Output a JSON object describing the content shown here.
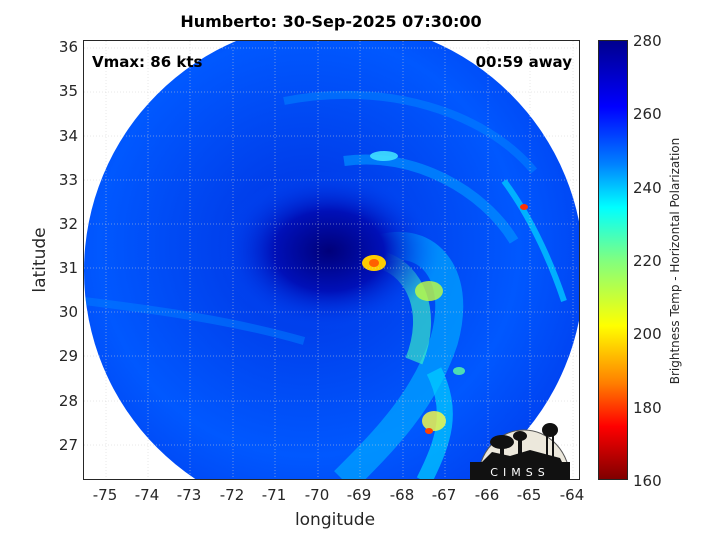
{
  "title": "Humberto: 30-Sep-2025 07:30:00",
  "annotations": {
    "vmax": "Vmax: 86 kts",
    "time_away": "00:59 away"
  },
  "axes": {
    "xlabel": "longitude",
    "ylabel": "latitude",
    "xlim": [
      -75.5,
      -63.8
    ],
    "ylim": [
      26.2,
      36.2
    ],
    "x_ticks": [
      "-75",
      "-74",
      "-73",
      "-72",
      "-71",
      "-70",
      "-69",
      "-68",
      "-67",
      "-66",
      "-65",
      "-64"
    ],
    "y_ticks": [
      "27",
      "28",
      "29",
      "30",
      "31",
      "32",
      "33",
      "34",
      "35",
      "36"
    ]
  },
  "colorbar": {
    "label": "Brightness Temp - Horizontal Polarization",
    "range": [
      160,
      280
    ],
    "ticks": [
      "280",
      "260",
      "240",
      "220",
      "200",
      "180",
      "160"
    ],
    "colormap": "jet"
  },
  "storm": {
    "center_lon": -69.6,
    "center_lat": 31.2
  },
  "logo_text": "CIMSS",
  "colors": {
    "deep_blue": "#00008f",
    "blue": "#0000ff",
    "cyan": "#00c8ff",
    "yellow": "#ffff00",
    "red": "#ff0000"
  }
}
